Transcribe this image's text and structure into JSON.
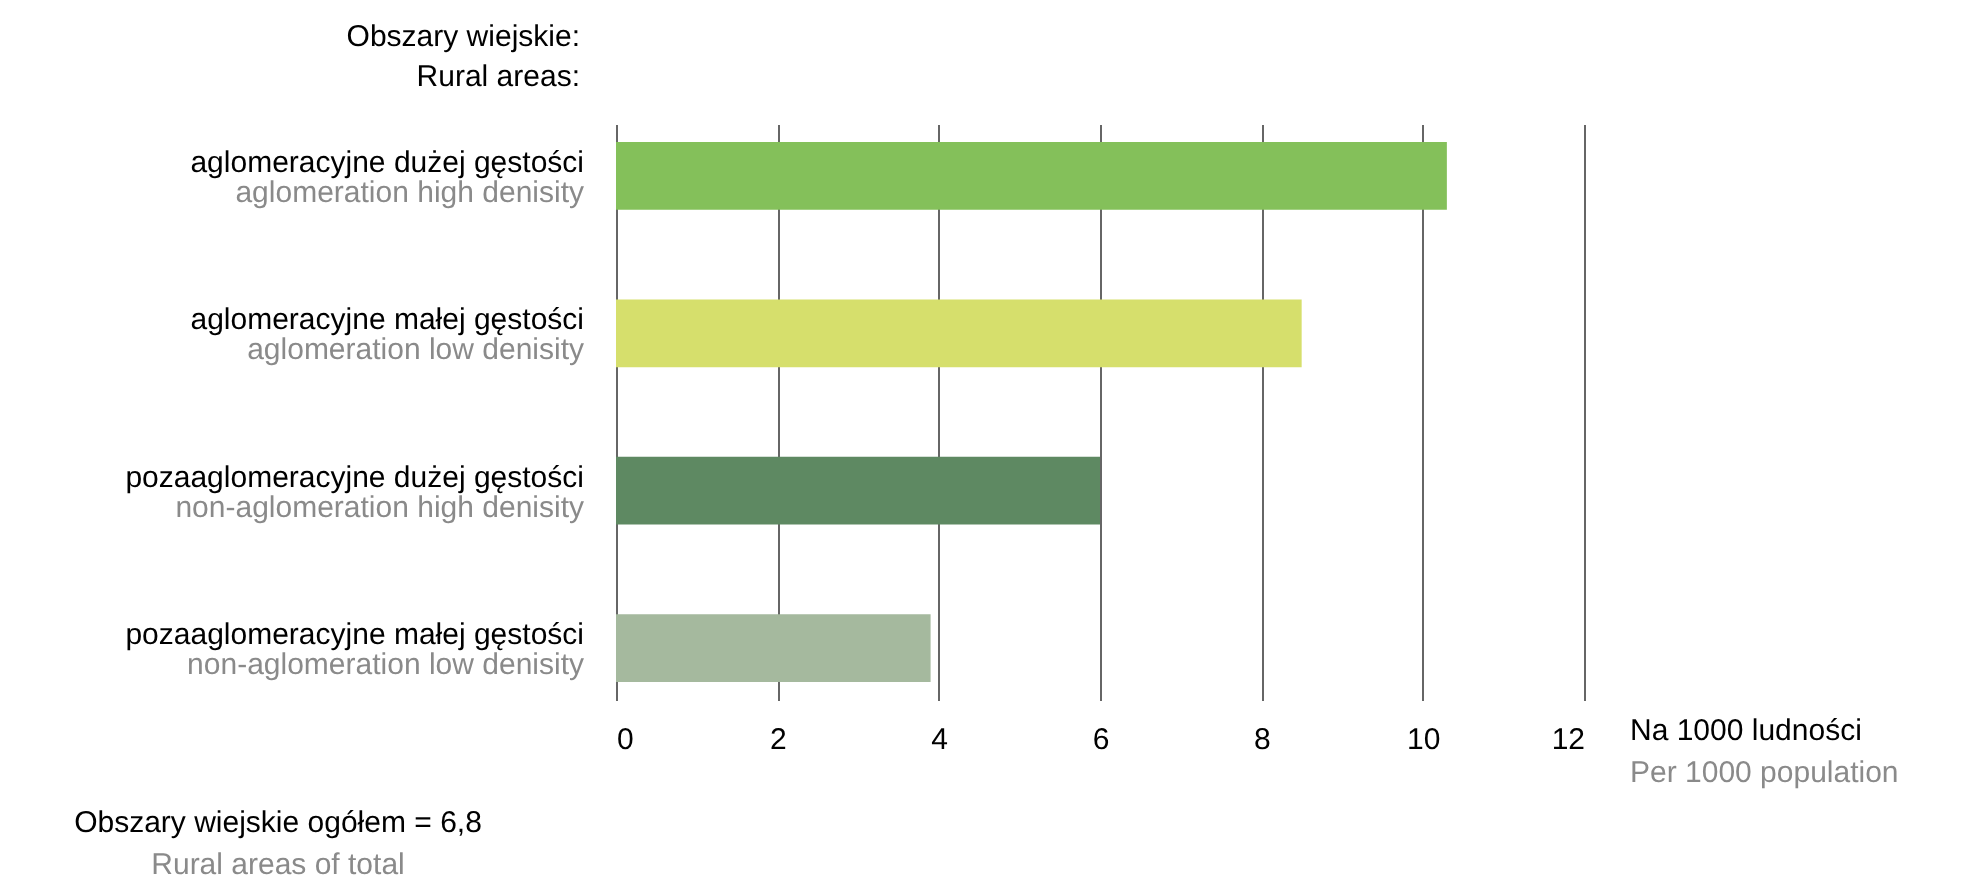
{
  "chart_data": {
    "type": "bar",
    "orientation": "horizontal",
    "title": "Obszary wiejskie:",
    "subtitle": "Rural areas:",
    "categories": [
      "aglomeracyjne dużej gęstości\naglomeration high denisity",
      "aglomeracyjne małej gęstości\naglomeration low denisity",
      "pozaaglomeracyjne dużej gęstości\nnon-aglomeration high denisity",
      "pozaaglomeracyjne małej gęstości\nnon-aglomeration low denisity"
    ],
    "values": [
      10.3,
      8.5,
      6.0,
      3.9
    ],
    "colors": [
      "#84c05a",
      "#d6df6c",
      "#5e8962",
      "#a5b99e"
    ],
    "xlim": [
      0,
      12
    ],
    "xticks": [
      0,
      2,
      4,
      6,
      8,
      10,
      12
    ],
    "xlabel": "Na 1000 ludności\nPer 1000 population",
    "annotations": [
      "Obszary wiejskie ogółem = 6,8\nRural areas of total"
    ],
    "grid": "x"
  }
}
